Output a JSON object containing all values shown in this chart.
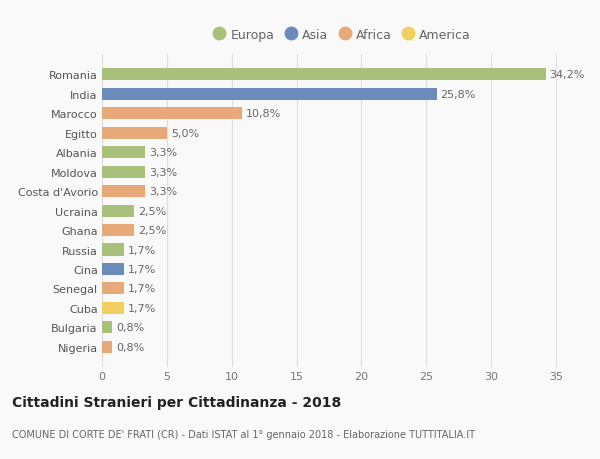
{
  "countries": [
    "Romania",
    "India",
    "Marocco",
    "Egitto",
    "Albania",
    "Moldova",
    "Costa d'Avorio",
    "Ucraina",
    "Ghana",
    "Russia",
    "Cina",
    "Senegal",
    "Cuba",
    "Bulgaria",
    "Nigeria"
  ],
  "values": [
    34.2,
    25.8,
    10.8,
    5.0,
    3.3,
    3.3,
    3.3,
    2.5,
    2.5,
    1.7,
    1.7,
    1.7,
    1.7,
    0.8,
    0.8
  ],
  "labels": [
    "34,2%",
    "25,8%",
    "10,8%",
    "5,0%",
    "3,3%",
    "3,3%",
    "3,3%",
    "2,5%",
    "2,5%",
    "1,7%",
    "1,7%",
    "1,7%",
    "1,7%",
    "0,8%",
    "0,8%"
  ],
  "continents": [
    "Europa",
    "Asia",
    "Africa",
    "Africa",
    "Europa",
    "Europa",
    "Africa",
    "Europa",
    "Africa",
    "Europa",
    "Asia",
    "Africa",
    "America",
    "Europa",
    "Africa"
  ],
  "continent_colors": {
    "Europa": "#a8c07a",
    "Asia": "#6b8cba",
    "Africa": "#e8a97a",
    "America": "#f0d060"
  },
  "legend_order": [
    "Europa",
    "Asia",
    "Africa",
    "America"
  ],
  "title": "Cittadini Stranieri per Cittadinanza - 2018",
  "subtitle": "COMUNE DI CORTE DE' FRATI (CR) - Dati ISTAT al 1° gennaio 2018 - Elaborazione TUTTITALIA.IT",
  "xlim": [
    0,
    37
  ],
  "xticks": [
    0,
    5,
    10,
    15,
    20,
    25,
    30,
    35
  ],
  "background_color": "#f9f9f9",
  "grid_color": "#dddddd",
  "bar_height": 0.62,
  "label_fontsize": 8,
  "tick_fontsize": 8,
  "title_fontsize": 10,
  "subtitle_fontsize": 7
}
